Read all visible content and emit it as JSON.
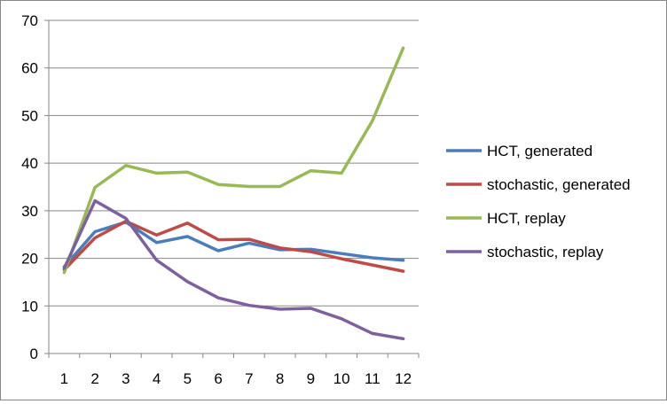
{
  "chart_data": {
    "type": "line",
    "title": "",
    "xlabel": "",
    "ylabel": "",
    "categories": [
      "1",
      "2",
      "3",
      "4",
      "5",
      "6",
      "7",
      "8",
      "9",
      "10",
      "11",
      "12"
    ],
    "ylim": [
      0,
      70
    ],
    "y_ticks": [
      "0",
      "10",
      "20",
      "30",
      "40",
      "50",
      "60",
      "70"
    ],
    "grid": "horizontal",
    "legend_position": "right",
    "series": [
      {
        "name": "HCT, generated",
        "color": "#4a7ebb",
        "values": [
          18.2,
          25.6,
          27.6,
          23.3,
          24.6,
          21.6,
          23.2,
          21.8,
          21.9,
          21.0,
          20.1,
          19.6
        ]
      },
      {
        "name": "stochastic, generated",
        "color": "#be4b48",
        "values": [
          17.6,
          24.3,
          27.8,
          24.9,
          27.4,
          23.9,
          24.0,
          22.2,
          21.4,
          19.9,
          18.6,
          17.3
        ]
      },
      {
        "name": "HCT, replay",
        "color": "#98b954",
        "values": [
          17.0,
          34.9,
          39.5,
          37.9,
          38.1,
          35.5,
          35.1,
          35.1,
          38.4,
          37.9,
          48.9,
          64.2
        ]
      },
      {
        "name": "stochastic, replay",
        "color": "#7d60a0",
        "values": [
          17.9,
          32.1,
          28.4,
          19.6,
          15.1,
          11.7,
          10.1,
          9.3,
          9.5,
          7.3,
          4.2,
          3.1
        ]
      }
    ]
  }
}
